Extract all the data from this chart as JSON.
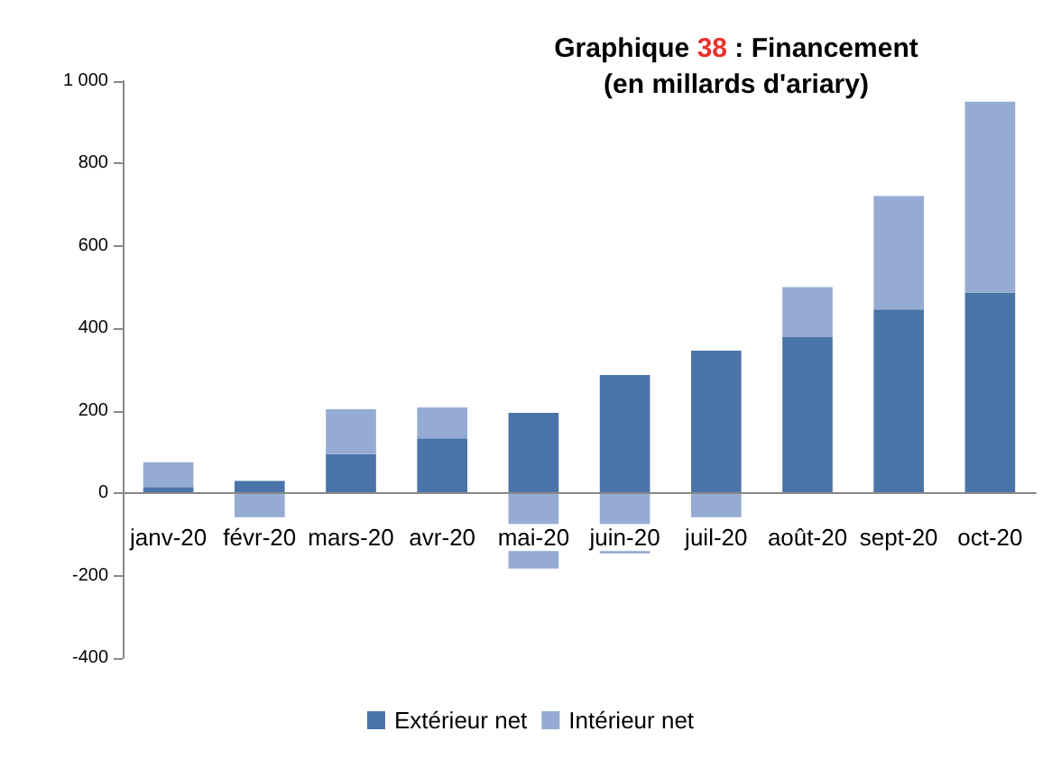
{
  "chart_data": {
    "type": "bar",
    "title": "Graphique 38 : Financement\n(en millards d'ariary)",
    "stacked": true,
    "categories": [
      "janv-20",
      "févr-20",
      "mars-20",
      "avr-20",
      "mai-20",
      "juin-20",
      "juil-20",
      "août-20",
      "sept-20",
      "oct-20"
    ],
    "series": [
      {
        "name": "Extérieur net",
        "color": "#4a74a8",
        "values": [
          15,
          30,
          95,
          133,
          195,
          287,
          346,
          379,
          446,
          487
        ]
      },
      {
        "name": "Intérieur net",
        "color": "#95abd3",
        "values": [
          60,
          -58,
          109,
          75,
          -183,
          -146,
          -58,
          121,
          275,
          463
        ]
      }
    ],
    "ylim": [
      -400,
      1000
    ],
    "yticks": [
      -400,
      -200,
      0,
      200,
      400,
      600,
      800,
      {
        "value": 1000,
        "label": "1 000"
      }
    ],
    "grid": false,
    "legend": "bottom"
  }
}
